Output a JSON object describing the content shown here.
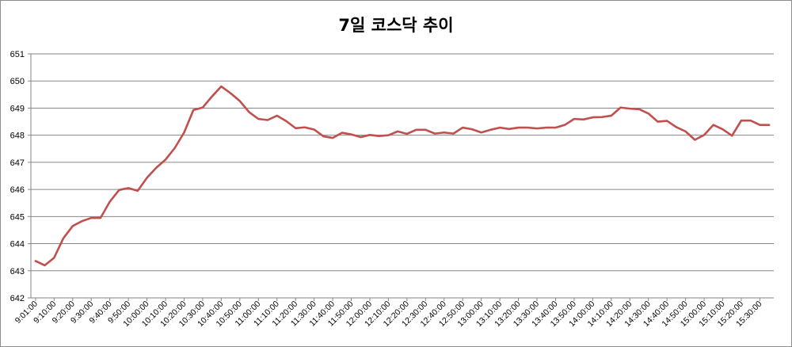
{
  "chart_data": {
    "type": "line",
    "title": "7일 코스닥 추이",
    "xlabel": "",
    "ylabel": "",
    "ylim": [
      642,
      651
    ],
    "y_ticks": [
      "642",
      "643",
      "644",
      "645",
      "646",
      "647",
      "648",
      "649",
      "650",
      "651"
    ],
    "grid": true,
    "legend": "none",
    "x_tick_labels": [
      "9:01:00",
      "9:10:00",
      "9:20:00",
      "9:30:00",
      "9:40:00",
      "9:50:00",
      "10:00:00",
      "10:10:00",
      "10:20:00",
      "10:30:00",
      "10:40:00",
      "10:50:00",
      "11:00:00",
      "11:10:00",
      "11:20:00",
      "11:30:00",
      "11:40:00",
      "11:50:00",
      "12:00:00",
      "12:10:00",
      "12:20:00",
      "12:30:00",
      "12:40:00",
      "12:50:00",
      "13:00:00",
      "13:10:00",
      "13:20:00",
      "13:30:00",
      "13:40:00",
      "13:50:00",
      "14:00:00",
      "14:10:00",
      "14:20:00",
      "14:30:00",
      "14:40:00",
      "14:50:00",
      "15:00:00",
      "15:10:00",
      "15:20:00",
      "15:30:00"
    ],
    "series": [
      {
        "color": "#c0504d",
        "values": [
          643.36,
          643.2,
          643.48,
          644.2,
          644.65,
          644.83,
          644.95,
          644.95,
          645.55,
          645.98,
          646.05,
          645.95,
          646.43,
          646.8,
          647.1,
          647.53,
          648.1,
          648.93,
          649.02,
          649.43,
          649.8,
          649.55,
          649.26,
          648.85,
          648.6,
          648.56,
          648.72,
          648.52,
          648.26,
          648.29,
          648.21,
          647.96,
          647.9,
          648.09,
          648.03,
          647.93,
          648.01,
          647.97,
          648.0,
          648.14,
          648.05,
          648.2,
          648.2,
          648.06,
          648.1,
          648.06,
          648.28,
          648.22,
          648.1,
          648.2,
          648.28,
          648.23,
          648.28,
          648.28,
          648.25,
          648.28,
          648.28,
          648.38,
          648.6,
          648.58,
          648.66,
          648.67,
          648.72,
          649.02,
          648.98,
          648.96,
          648.8,
          648.5,
          648.53,
          648.3,
          648.14,
          647.83,
          648.01,
          648.38,
          648.22,
          647.98,
          648.54,
          648.54,
          648.38,
          648.38
        ]
      }
    ]
  }
}
